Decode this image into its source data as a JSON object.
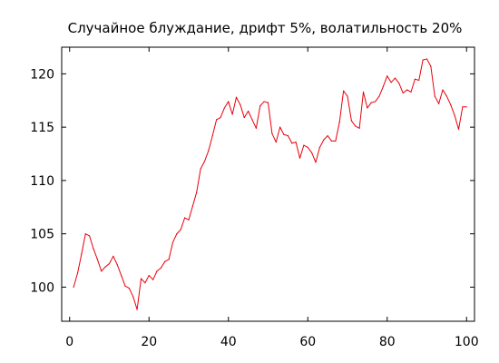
{
  "chart_data": {
    "type": "line",
    "title": "Случайное блуждание, дрифт 5%, волатильность 20%",
    "xlabel": "",
    "ylabel": "",
    "xlim": [
      -2,
      102
    ],
    "ylim": [
      96.8,
      122.5
    ],
    "xticks": [
      0,
      20,
      40,
      60,
      80,
      100
    ],
    "yticks": [
      100,
      105,
      110,
      115,
      120
    ],
    "xtick_labels": [
      "0",
      "20",
      "40",
      "60",
      "80",
      "100"
    ],
    "ytick_labels": [
      "100",
      "105",
      "110",
      "115",
      "120"
    ],
    "grid": false,
    "series": [
      {
        "color": "#e8000b",
        "x": [
          1,
          2,
          3,
          4,
          5,
          6,
          7,
          8,
          9,
          10,
          11,
          12,
          13,
          14,
          15,
          16,
          17,
          18,
          19,
          20,
          21,
          22,
          23,
          24,
          25,
          26,
          27,
          28,
          29,
          30,
          31,
          32,
          33,
          34,
          35,
          36,
          37,
          38,
          39,
          40,
          41,
          42,
          43,
          44,
          45,
          46,
          47,
          48,
          49,
          50,
          51,
          52,
          53,
          54,
          55,
          56,
          57,
          58,
          59,
          60,
          61,
          62,
          63,
          64,
          65,
          66,
          67,
          68,
          69,
          70,
          71,
          72,
          73,
          74,
          75,
          76,
          77,
          78,
          79,
          80,
          81,
          82,
          83,
          84,
          85,
          86,
          87,
          88,
          89,
          90,
          91,
          92,
          93,
          94,
          95,
          96,
          97,
          98,
          99,
          100
        ],
        "y": [
          100.0,
          101.3,
          103.1,
          105.0,
          104.8,
          103.6,
          102.6,
          101.5,
          101.9,
          102.2,
          102.9,
          102.1,
          101.1,
          100.1,
          99.9,
          99.1,
          97.9,
          100.8,
          100.4,
          101.1,
          100.7,
          101.5,
          101.8,
          102.4,
          102.6,
          104.2,
          105.0,
          105.4,
          106.5,
          106.3,
          107.6,
          108.9,
          111.1,
          111.8,
          112.8,
          114.2,
          115.7,
          115.9,
          116.8,
          117.4,
          116.2,
          117.8,
          117.1,
          115.9,
          116.5,
          115.7,
          114.9,
          117.0,
          117.4,
          117.3,
          114.4,
          113.6,
          115.0,
          114.3,
          114.2,
          113.5,
          113.6,
          112.1,
          113.3,
          113.1,
          112.6,
          111.7,
          113.1,
          113.8,
          114.2,
          113.7,
          113.7,
          115.5,
          118.4,
          117.9,
          115.6,
          115.1,
          114.9,
          118.3,
          116.8,
          117.3,
          117.4,
          117.9,
          118.8,
          119.8,
          119.2,
          119.6,
          119.1,
          118.2,
          118.5,
          118.3,
          119.5,
          119.4,
          121.3,
          121.4,
          120.7,
          117.9,
          117.2,
          118.5,
          117.9,
          117.1,
          116.1,
          114.8,
          116.9,
          116.9
        ]
      }
    ]
  }
}
